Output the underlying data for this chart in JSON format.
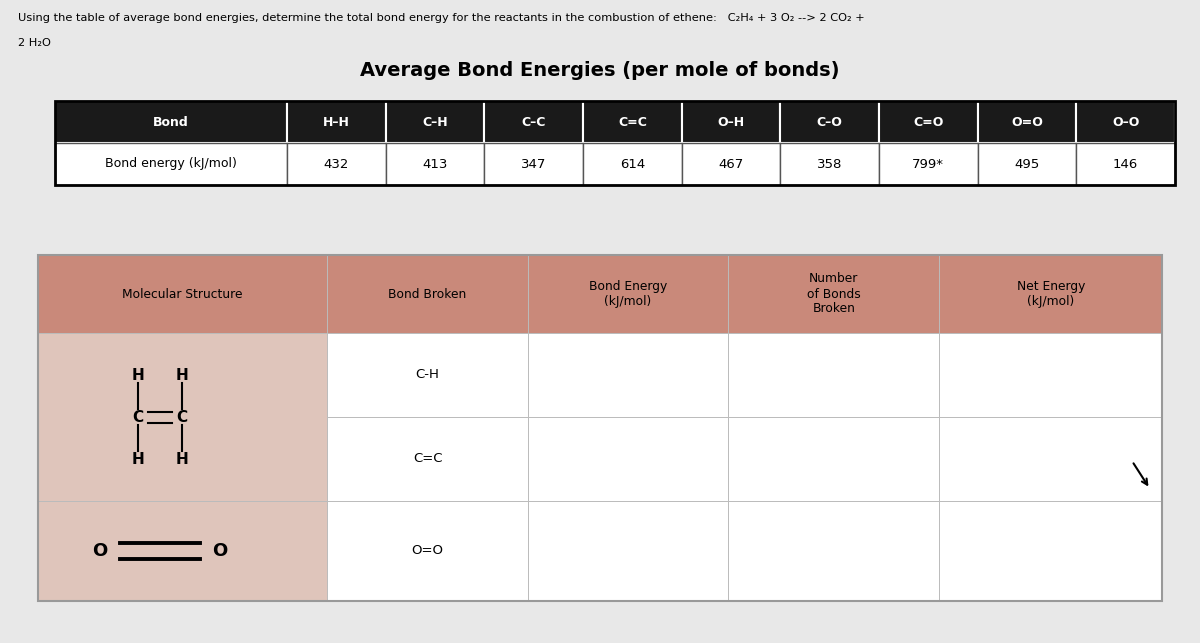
{
  "title_question": "Using the table of average bond energies, determine the total bond energy for the reactants in the combustion of ethene:   C₂H₄ + 3 O₂ --> 2 CO₂ +",
  "title_line2": "2 H₂O",
  "table1_title": "Average Bond Energies (per mole of bonds)",
  "table1_header": [
    "Bond",
    "H–H",
    "C–H",
    "C–C",
    "C=C",
    "O–H",
    "C–O",
    "C=O",
    "O=O",
    "O–O"
  ],
  "table1_row": [
    "Bond energy (kJ/mol)",
    "432",
    "413",
    "347",
    "614",
    "467",
    "358",
    "799*",
    "495",
    "146"
  ],
  "table2_headers": [
    "Molecular Structure",
    "Bond Broken",
    "Bond Energy\n(kJ/mol)",
    "Number\nof Bonds\nBroken",
    "Net Energy\n(kJ/mol)"
  ],
  "row1_bonds": [
    "C-H",
    "C=C"
  ],
  "row2_bonds": [
    "O=O"
  ],
  "bg_color": "#e8e8e8",
  "header_bg_t2": "#c9897a",
  "cell_bg": "#dfc5bb",
  "white": "#ffffff",
  "table1_header_bg": "#1a1a1a",
  "table2_outer_color": "#999999"
}
